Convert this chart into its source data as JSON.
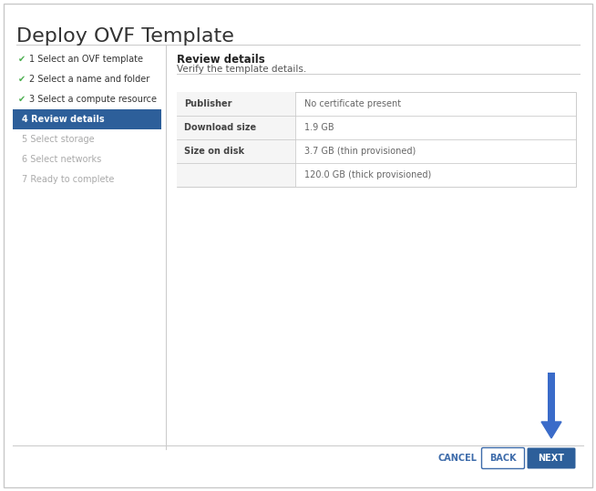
{
  "title": "Deploy OVF Template",
  "title_color": "#333333",
  "title_fontsize": 16,
  "bg_color": "#ffffff",
  "border_color": "#c8c8c8",
  "divider_color": "#cccccc",
  "sidebar_items": [
    {
      "text": "1 Select an OVF template",
      "checked": true,
      "active": false
    },
    {
      "text": "2 Select a name and folder",
      "checked": true,
      "active": false
    },
    {
      "text": "3 Select a compute resource",
      "checked": true,
      "active": false
    },
    {
      "text": "4 Review details",
      "checked": false,
      "active": true
    },
    {
      "text": "5 Select storage",
      "checked": false,
      "active": false
    },
    {
      "text": "6 Select networks",
      "checked": false,
      "active": false
    },
    {
      "text": "7 Ready to complete",
      "checked": false,
      "active": false
    }
  ],
  "sidebar_active_bg": "#2d5f9a",
  "sidebar_active_fg": "#ffffff",
  "sidebar_checked_color": "#4caf50",
  "sidebar_inactive_fg": "#aaaaaa",
  "sidebar_normal_fg": "#333333",
  "panel_title": "Review details",
  "panel_subtitle": "Verify the template details.",
  "table_rows": [
    {
      "label": "Publisher",
      "value": "No certificate present"
    },
    {
      "label": "Download size",
      "value": "1.9 GB"
    },
    {
      "label": "Size on disk",
      "value": "3.7 GB (thin provisioned)"
    },
    {
      "label": "",
      "value": "120.0 GB (thick provisioned)"
    }
  ],
  "table_border_color": "#cccccc",
  "table_label_fg": "#444444",
  "table_value_fg": "#666666",
  "table_bg": "#ffffff",
  "table_label_bg": "#f5f5f5",
  "button_cancel_text": "CANCEL",
  "button_back_text": "BACK",
  "button_next_text": "NEXT",
  "button_cancel_fg": "#3d6baa",
  "button_back_fg": "#3d6baa",
  "button_next_fg": "#ffffff",
  "button_next_bg": "#2d5f9a",
  "button_back_border": "#3d6baa",
  "arrow_color": "#3a6bc9"
}
